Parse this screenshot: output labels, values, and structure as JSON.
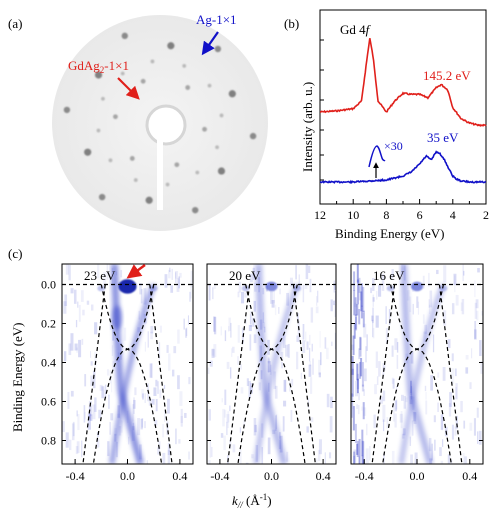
{
  "panels": {
    "a": {
      "label": "(a)",
      "annotations": [
        {
          "text": "GdAg",
          "sub": "2",
          "tail": "-1×1",
          "color": "#e0201b"
        },
        {
          "text": "Ag-1×1",
          "color": "#1010c8"
        }
      ]
    },
    "b": {
      "label": "(b)",
      "peak_label": "Gd 4",
      "peak_label_italic": "f",
      "red_label": "145.2  eV",
      "blue_label": "35 eV",
      "zoom_label": "×30",
      "ylabel": "Intensity (arb. u.)",
      "xlabel": "Binding Energy (eV)",
      "xticks": [
        "12",
        "10",
        "8",
        "6",
        "4",
        "2"
      ]
    },
    "c": {
      "label": "(c)",
      "ylabel": "Binding Energy (eV)",
      "xlabel_main": "k",
      "xlabel_sub": "//",
      "xlabel_unit": " (Å",
      "xlabel_exp": "-1",
      "xlabel_close": ")",
      "yticks": [
        "0.0",
        "0.2",
        "0.4",
        "0.6",
        "0.8"
      ],
      "xticks": [
        "-0.4",
        "0.0",
        "0.4"
      ],
      "subpanels": [
        {
          "energy": "23 eV"
        },
        {
          "energy": "20 eV"
        },
        {
          "energy": "16 eV"
        }
      ]
    }
  },
  "chart_data": [
    {
      "type": "line",
      "title": "",
      "xlabel": "Binding Energy (eV)",
      "ylabel": "Intensity (arb. u.)",
      "xlim": [
        12,
        2
      ],
      "series": [
        {
          "name": "145.2  eV",
          "color": "#e0201b",
          "x": [
            12,
            11,
            10,
            9.5,
            9.2,
            9.0,
            8.8,
            8.5,
            8.0,
            7.5,
            7.0,
            6.5,
            6.0,
            5.5,
            5.0,
            4.7,
            4.3,
            4.0,
            3.5,
            3.0,
            2.5,
            2
          ],
          "y": [
            0.3,
            0.31,
            0.33,
            0.4,
            0.75,
            0.97,
            0.8,
            0.4,
            0.3,
            0.4,
            0.47,
            0.46,
            0.46,
            0.43,
            0.52,
            0.55,
            0.5,
            0.34,
            0.24,
            0.2,
            0.18,
            0.18
          ]
        },
        {
          "name": "35 eV",
          "color": "#1010c8",
          "x": [
            12,
            11,
            10,
            9,
            8,
            7.5,
            7,
            6.5,
            6.0,
            5.6,
            5.3,
            5.0,
            4.8,
            4.5,
            4.2,
            4.0,
            3.8,
            3.5,
            3,
            2.5,
            2
          ],
          "y": [
            0.0,
            0.0,
            0.0,
            0.01,
            0.02,
            0.04,
            0.06,
            0.1,
            0.18,
            0.26,
            0.22,
            0.3,
            0.29,
            0.22,
            0.12,
            0.06,
            0.03,
            0.01,
            0.0,
            0.0,
            0.0
          ]
        }
      ]
    }
  ]
}
